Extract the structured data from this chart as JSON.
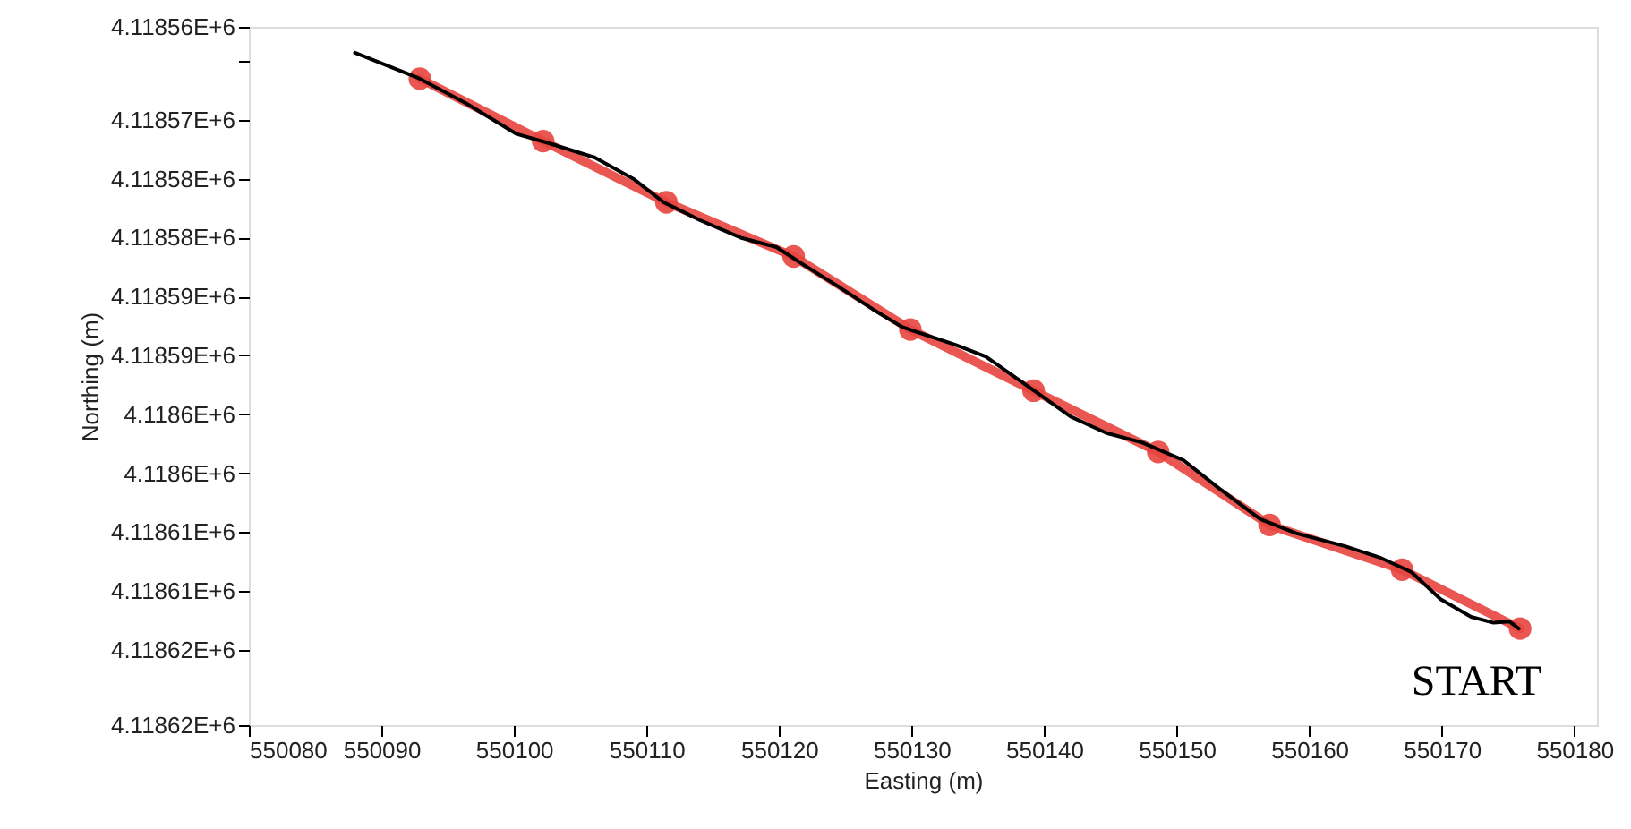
{
  "chart_data": {
    "type": "line",
    "xlabel": "Easting (m)",
    "ylabel": "Northing (m)",
    "xlim": [
      550080,
      550181.7
    ],
    "xticks": [
      550080,
      550090,
      550100,
      550110,
      550120,
      550130,
      550140,
      550150,
      550160,
      550170,
      550180
    ],
    "ylim": [
      4118621.4,
      4118562.1
    ],
    "yticks": [
      {
        "value": 4118562.1,
        "label": "4.11856E+6"
      },
      {
        "value": 4118565,
        "label": null
      },
      {
        "value": 4118570,
        "label": "4.11857E+6"
      },
      {
        "value": 4118575,
        "label": "4.11858E+6"
      },
      {
        "value": 4118580,
        "label": "4.11858E+6"
      },
      {
        "value": 4118585,
        "label": "4.11859E+6"
      },
      {
        "value": 4118590,
        "label": "4.11859E+6"
      },
      {
        "value": 4118595,
        "label": "4.1186E+6"
      },
      {
        "value": 4118600,
        "label": "4.1186E+6"
      },
      {
        "value": 4118605,
        "label": "4.11861E+6"
      },
      {
        "value": 4118610,
        "label": "4.11861E+6"
      },
      {
        "value": 4118615,
        "label": "4.11862E+6"
      },
      {
        "value": 4118621.4,
        "label": "4.11862E+6"
      }
    ],
    "grid": false,
    "series": [
      {
        "color": "#e8453f",
        "marker": "circle",
        "x": [
          550092.9,
          550102.2,
          550111.5,
          550121.1,
          550129.9,
          550139.2,
          550148.6,
          550157.0,
          550167.0,
          550175.9
        ],
        "values": [
          4118566.5,
          4118571.8,
          4118577.0,
          4118581.6,
          4118587.8,
          4118593.0,
          4118598.2,
          4118604.4,
          4118608.2,
          4118613.2
        ]
      },
      {
        "color": "#000000",
        "marker": "none",
        "x": [
          550088.0,
          550092.7,
          550096.4,
          550100.2,
          550102.7,
          550106.1,
          550109.0,
          550111.3,
          550114.0,
          550117.1,
          550119.8,
          550121.7,
          550124.4,
          550127.1,
          550129.3,
          550133.3,
          550135.6,
          550139.0,
          550142.0,
          550144.7,
          550147.4,
          550150.5,
          550153.2,
          550156.3,
          550159.0,
          550162.7,
          550165.4,
          550167.7,
          550169.9,
          550172.2,
          550173.9,
          550175.1,
          550175.8
        ],
        "values": [
          4118564.3,
          4118566.4,
          4118568.6,
          4118571.2,
          4118572.0,
          4118573.2,
          4118575.0,
          4118577.0,
          4118578.5,
          4118580.0,
          4118580.8,
          4118582.2,
          4118584.1,
          4118586.1,
          4118587.6,
          4118589.1,
          4118590.1,
          4118592.8,
          4118595.2,
          4118596.6,
          4118597.4,
          4118598.9,
          4118601.3,
          4118603.9,
          4118605.1,
          4118606.2,
          4118607.2,
          4118608.4,
          4118610.7,
          4118612.2,
          4118612.7,
          4118612.6,
          4118613.2
        ]
      }
    ],
    "annotations": [
      {
        "text": "START",
        "x": 550175.9,
        "y": 4118613.2
      }
    ]
  }
}
